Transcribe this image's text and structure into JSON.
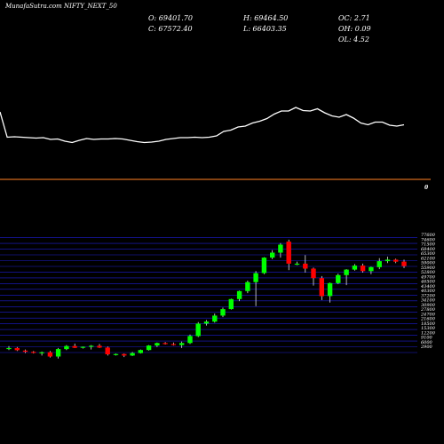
{
  "header": {
    "site": "MunafaSutra.com",
    "symbol": "NIFTY_NEXT_50"
  },
  "ohlc": {
    "o": "O: 69401.70",
    "h": "H: 69464.50",
    "oc": "OC: 2.71",
    "c": "C: 67572.40",
    "l": "L: 66403.35",
    "oh": "OH: 0.09",
    "ol": "OL: 4.52"
  },
  "colors": {
    "up": "#00ff00",
    "down": "#ff0000",
    "grid": "#1e1ed2",
    "divider": "#d2691e",
    "line": "#ffffff"
  },
  "chart_data": [
    {
      "type": "line",
      "x": [
        0,
        1,
        2,
        3,
        4,
        5,
        6,
        7,
        8,
        9,
        10,
        11,
        12,
        13,
        14,
        15,
        16,
        17,
        18,
        19,
        20,
        21,
        22,
        23,
        24,
        25,
        26,
        27,
        28,
        29,
        30,
        31,
        32,
        33,
        34,
        35,
        36,
        37,
        38,
        39,
        40,
        41,
        42,
        43,
        44,
        45,
        46,
        47,
        48,
        49,
        50,
        51,
        52,
        53,
        54,
        55,
        56
      ],
      "values": [
        72,
        15,
        16,
        15,
        14,
        13,
        14,
        10,
        11,
        6,
        3,
        8,
        12,
        10,
        11,
        11,
        12,
        11,
        8,
        5,
        3,
        4,
        6,
        10,
        12,
        14,
        14,
        15,
        14,
        15,
        18,
        28,
        31,
        38,
        40,
        47,
        51,
        57,
        67,
        74,
        74,
        82,
        75,
        74,
        79,
        70,
        63,
        60,
        66,
        58,
        47,
        43,
        49,
        49,
        42,
        40,
        43
      ]
    },
    {
      "type": "candlestick",
      "candles": [
        [
          34800,
          35300,
          34500,
          34900
        ],
        [
          34900,
          35100,
          34300,
          34450
        ],
        [
          34400,
          34600,
          33900,
          34150
        ],
        [
          34150,
          34300,
          33800,
          33950
        ],
        [
          33950,
          34200,
          33400,
          34050
        ],
        [
          34050,
          34300,
          33000,
          33200
        ],
        [
          33200,
          34900,
          32800,
          34700
        ],
        [
          34700,
          35500,
          34500,
          35300
        ],
        [
          35300,
          35800,
          34900,
          34950
        ],
        [
          35000,
          35200,
          34800,
          35150
        ],
        [
          35150,
          35500,
          34600,
          35350
        ],
        [
          35350,
          35700,
          34900,
          35000
        ],
        [
          35000,
          35200,
          33400,
          33650
        ],
        [
          33650,
          33800,
          33400,
          33700
        ],
        [
          33700,
          33800,
          33100,
          33400
        ],
        [
          33400,
          34100,
          33300,
          33900
        ],
        [
          33900,
          34600,
          33800,
          34500
        ],
        [
          34500,
          35500,
          34400,
          35400
        ],
        [
          35400,
          36000,
          35100,
          35900
        ],
        [
          35900,
          36100,
          35600,
          35700
        ],
        [
          35700,
          36000,
          35400,
          35500
        ],
        [
          35500,
          36200,
          34900,
          35900
        ],
        [
          35900,
          37600,
          35700,
          37300
        ],
        [
          37300,
          40100,
          37100,
          39800
        ],
        [
          39800,
          40500,
          39400,
          40200
        ],
        [
          40200,
          41800,
          40000,
          41400
        ],
        [
          41400,
          43000,
          41100,
          42700
        ],
        [
          42700,
          44800,
          42600,
          44700
        ],
        [
          44700,
          46400,
          44300,
          46300
        ],
        [
          46300,
          48400,
          45900,
          48100
        ],
        [
          48100,
          50300,
          43300,
          49900
        ],
        [
          49900,
          53100,
          49700,
          53000
        ],
        [
          53000,
          54500,
          52700,
          54000
        ],
        [
          54000,
          55900,
          53000,
          55600
        ],
        [
          56200,
          56600,
          50500,
          51800
        ],
        [
          51800,
          52200,
          51500,
          51800
        ],
        [
          51800,
          53500,
          50000,
          50800
        ],
        [
          50800,
          51000,
          47400,
          48900
        ],
        [
          48900,
          49300,
          44500,
          45300
        ],
        [
          45300,
          48000,
          44000,
          47900
        ],
        [
          47900,
          49800,
          47700,
          49500
        ],
        [
          49500,
          50700,
          47500,
          50600
        ],
        [
          50600,
          51700,
          50400,
          51400
        ],
        [
          51400,
          51800,
          50000,
          50300
        ],
        [
          50300,
          51200,
          49700,
          51100
        ],
        [
          51100,
          52900,
          50700,
          52300
        ],
        [
          52300,
          53200,
          51900,
          52600
        ],
        [
          52600,
          52800,
          51900,
          52200
        ],
        [
          52200,
          52600,
          50900,
          51300
        ]
      ],
      "ylim": [
        34000,
        58000
      ],
      "y_ticks": [
        "57000",
        "55850",
        "54700",
        "53550",
        "52400",
        "51250",
        "50100",
        "48950",
        "47800",
        "46650",
        "45500",
        "44350",
        "43200",
        "42050",
        "40900",
        "39750",
        "38600",
        "37450",
        "36300",
        "35150",
        "34000"
      ],
      "y_tick_labels": [
        "77600",
        "74600",
        "71500",
        "68400",
        "65300",
        "62100",
        "59000",
        "55900",
        "52800",
        "49700",
        "46500",
        "43400",
        "40300",
        "37200",
        "34100",
        "30900",
        "27800",
        "24700",
        "21600",
        "18500",
        "15300",
        "12200",
        "9100",
        "6000",
        "2900"
      ],
      "marker": "0"
    }
  ]
}
